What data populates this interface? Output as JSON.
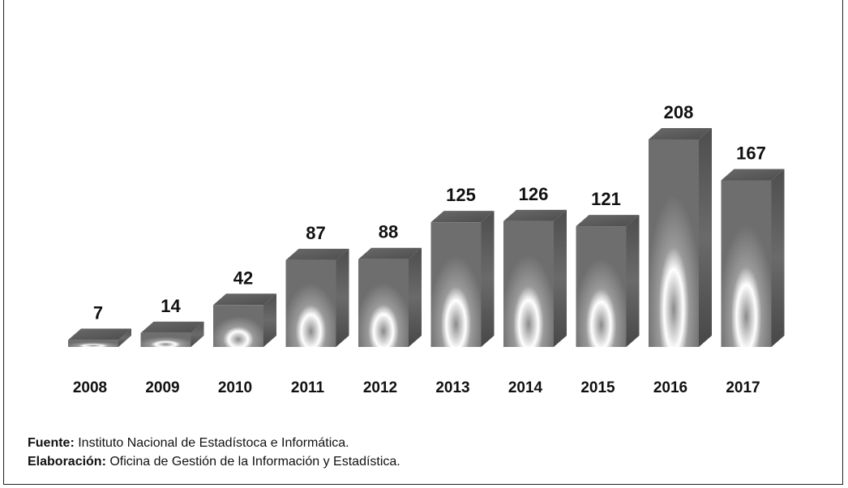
{
  "chart_data": {
    "type": "bar",
    "categories": [
      "2008",
      "2009",
      "2010",
      "2011",
      "2012",
      "2013",
      "2014",
      "2015",
      "2016",
      "2017"
    ],
    "values": [
      7,
      14,
      42,
      87,
      88,
      125,
      126,
      121,
      208,
      167
    ],
    "data_labels": [
      "7",
      "14",
      "42",
      "87",
      "88",
      "125",
      "126",
      "121",
      "208",
      "167"
    ],
    "title": "",
    "xlabel": "",
    "ylabel": "",
    "ylim": [
      0,
      220
    ],
    "grid": false,
    "legend": "none",
    "style": "3d-gradient-grayscale"
  },
  "source": {
    "fuente_label": "Fuente:",
    "fuente_text": " Instituto Nacional de Estadístoca e Informática.",
    "elaboracion_label": "Elaboración:",
    "elaboracion_text": " Oficina de Gestión de la Información y Estadística."
  },
  "colors": {
    "bar_front": "#8a8a8a",
    "bar_top": "#5f5f5f",
    "bar_side": "#555555",
    "text": "#111111"
  }
}
